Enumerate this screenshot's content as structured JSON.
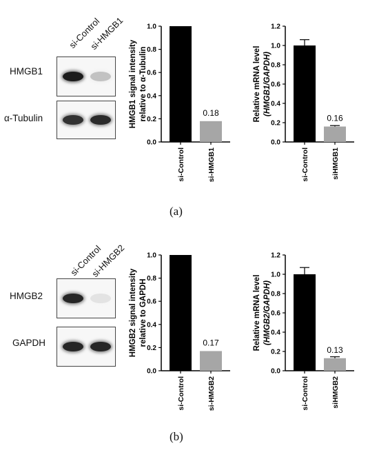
{
  "panels": [
    {
      "letter": "(a)",
      "blot": {
        "lanes": [
          "si-Control",
          "si-HMGB1"
        ],
        "rows": [
          {
            "label": "HMGB1",
            "bands": [
              0.95,
              0.22
            ]
          },
          {
            "label": "α-Tubulin",
            "bands": [
              0.85,
              0.88
            ]
          }
        ]
      },
      "charts": [
        {
          "type": "bar",
          "categories": [
            "si-Control",
            "si-HMGB1"
          ],
          "values": [
            1.0,
            0.18
          ],
          "errors": [
            0,
            0
          ],
          "bar_colors": [
            "#000000",
            "#a6a6a6"
          ],
          "data_labels": [
            "",
            "0.18"
          ],
          "ylabel_lines": [
            "HMGB1 signal intensity",
            "relative to α-Tubulin"
          ],
          "ylim": [
            0,
            1.0
          ],
          "yticks": [
            "0.0",
            "0.2",
            "0.4",
            "0.6",
            "0.8",
            "1.0"
          ]
        },
        {
          "type": "bar",
          "categories": [
            "si-Control",
            "siHMGB1"
          ],
          "values": [
            1.0,
            0.16
          ],
          "errors": [
            0.06,
            0.01
          ],
          "bar_colors": [
            "#000000",
            "#a6a6a6"
          ],
          "data_labels": [
            "",
            "0.16"
          ],
          "ylabel_lines": [
            "Relative mRNA level",
            "(HMGB1/GAPDH)"
          ],
          "ylim": [
            0,
            1.2
          ],
          "yticks": [
            "0.0",
            "0.2",
            "0.4",
            "0.6",
            "0.8",
            "1.0",
            "1.2"
          ]
        }
      ]
    },
    {
      "letter": "(b)",
      "blot": {
        "lanes": [
          "si-Control",
          "si-HMGB2"
        ],
        "rows": [
          {
            "label": "HMGB2",
            "bands": [
              0.9,
              0.08
            ]
          },
          {
            "label": "GAPDH",
            "bands": [
              0.9,
              0.9
            ]
          }
        ]
      },
      "charts": [
        {
          "type": "bar",
          "categories": [
            "si-Control",
            "si-HMGB2"
          ],
          "values": [
            1.0,
            0.17
          ],
          "errors": [
            0,
            0
          ],
          "bar_colors": [
            "#000000",
            "#a6a6a6"
          ],
          "data_labels": [
            "",
            "0.17"
          ],
          "ylabel_lines": [
            "HMGB2 signal intensity",
            "relative to GAPDH"
          ],
          "ylim": [
            0,
            1.0
          ],
          "yticks": [
            "0.0",
            "0.2",
            "0.4",
            "0.6",
            "0.8",
            "1.0"
          ]
        },
        {
          "type": "bar",
          "categories": [
            "si-Control",
            "siHMGB2"
          ],
          "values": [
            1.0,
            0.13
          ],
          "errors": [
            0.07,
            0.015
          ],
          "bar_colors": [
            "#000000",
            "#a6a6a6"
          ],
          "data_labels": [
            "",
            "0.13"
          ],
          "ylabel_lines": [
            "Relative mRNA level",
            "(HMGB2/GAPDH)"
          ],
          "ylim": [
            0,
            1.2
          ],
          "yticks": [
            "0.0",
            "0.2",
            "0.4",
            "0.6",
            "0.8",
            "1.0",
            "1.2"
          ]
        }
      ]
    }
  ],
  "chart_data": [
    {
      "type": "bar",
      "categories": [
        "si-Control",
        "si-HMGB1"
      ],
      "values": [
        1.0,
        0.18
      ],
      "ylabel": "HMGB1 signal intensity relative to α-Tubulin",
      "ylim": [
        0,
        1.0
      ]
    },
    {
      "type": "bar",
      "categories": [
        "si-Control",
        "siHMGB1"
      ],
      "values": [
        1.0,
        0.16
      ],
      "errors": [
        0.06,
        0.01
      ],
      "ylabel": "Relative mRNA level (HMGB1/GAPDH)",
      "ylim": [
        0,
        1.2
      ]
    },
    {
      "type": "bar",
      "categories": [
        "si-Control",
        "si-HMGB2"
      ],
      "values": [
        1.0,
        0.17
      ],
      "ylabel": "HMGB2 signal intensity relative to GAPDH",
      "ylim": [
        0,
        1.0
      ]
    },
    {
      "type": "bar",
      "categories": [
        "si-Control",
        "siHMGB2"
      ],
      "values": [
        1.0,
        0.13
      ],
      "errors": [
        0.07,
        0.015
      ],
      "ylabel": "Relative mRNA level (HMGB2/GAPDH)",
      "ylim": [
        0,
        1.2
      ]
    }
  ]
}
